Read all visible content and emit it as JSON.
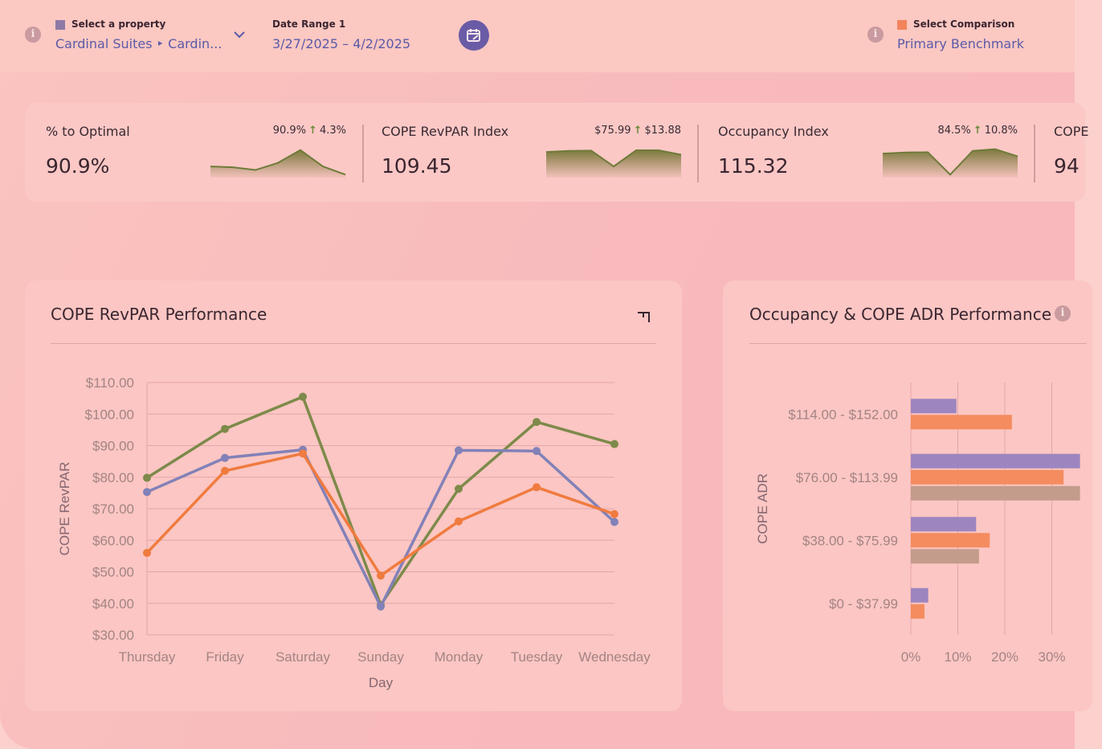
{
  "header": {
    "property_label": "Select a property",
    "property_value": "Cardinal Suites ‣ Cardin...",
    "date_label": "Date Range 1",
    "date_value": "3/27/2025 – 4/2/2025",
    "comparison_label": "Select Comparison",
    "comparison_value": "Primary Benchmark",
    "property_swatch": "#8e7aa6",
    "comparison_swatch": "#f2845c"
  },
  "kpis": [
    {
      "title": "% to Optimal",
      "value": "90.9%",
      "delta_left": "90.9%",
      "delta_right": "4.3%",
      "spark": [
        0.35,
        0.32,
        0.22,
        0.48,
        0.95,
        0.35,
        0.05
      ]
    },
    {
      "title": "COPE RevPAR Index",
      "value": "109.45",
      "delta_left": "$75.99",
      "delta_right": "$13.88",
      "spark": [
        0.88,
        0.92,
        0.93,
        0.35,
        0.94,
        0.94,
        0.78
      ]
    },
    {
      "title": "Occupancy Index",
      "value": "115.32",
      "delta_left": "84.5%",
      "delta_right": "10.8%",
      "spark": [
        0.82,
        0.86,
        0.87,
        0.05,
        0.92,
        0.98,
        0.72
      ]
    },
    {
      "title": "COPE",
      "value": "94",
      "delta_left": "",
      "delta_right": "",
      "spark": []
    }
  ],
  "revpar_card": {
    "title": "COPE RevPAR Performance",
    "chart_data": {
      "type": "line",
      "title": "COPE RevPAR Performance",
      "xlabel": "Day",
      "ylabel": "COPE RevPAR",
      "categories": [
        "Thursday",
        "Friday",
        "Saturday",
        "Sunday",
        "Monday",
        "Tuesday",
        "Wednesday"
      ],
      "y_ticks": [
        "$30.00",
        "$40.00",
        "$50.00",
        "$60.00",
        "$70.00",
        "$80.00",
        "$90.00",
        "$100.00",
        "$110.00"
      ],
      "ylim": [
        30,
        110
      ],
      "grid": true,
      "series": [
        {
          "color": "#7d8a4a",
          "values": [
            79.8,
            95.3,
            105.5,
            39.5,
            76.3,
            97.5,
            90.5
          ]
        },
        {
          "color": "#8281b8",
          "values": [
            75.3,
            86.1,
            88.7,
            39.0,
            88.5,
            88.3,
            65.8
          ]
        },
        {
          "color": "#f07b3f",
          "values": [
            56.0,
            82.0,
            87.5,
            48.8,
            66.0,
            76.8,
            68.3
          ]
        }
      ]
    }
  },
  "adr_card": {
    "title": "Occupancy & COPE ADR Performance",
    "chart_data": {
      "type": "bar",
      "orientation": "horizontal",
      "title": "Occupancy & COPE ADR Performance",
      "ylabel": "COPE ADR",
      "categories": [
        "$114.00 - $152.00",
        "$76.00 - $113.99",
        "$38.00 - $75.99",
        "$0 - $37.99"
      ],
      "x_ticks": [
        "0%",
        "10%",
        "20%",
        "30%"
      ],
      "xlim": [
        0,
        35
      ],
      "grid": true,
      "series": [
        {
          "color": "#9d86bf",
          "values": [
            9.7,
            36,
            13.9,
            3.7
          ]
        },
        {
          "color": "#f48c5f",
          "values": [
            21.5,
            32.5,
            16.8,
            2.9
          ]
        },
        {
          "color": "#c39c8c",
          "values": [
            null,
            36,
            14.5,
            null
          ]
        }
      ]
    }
  }
}
